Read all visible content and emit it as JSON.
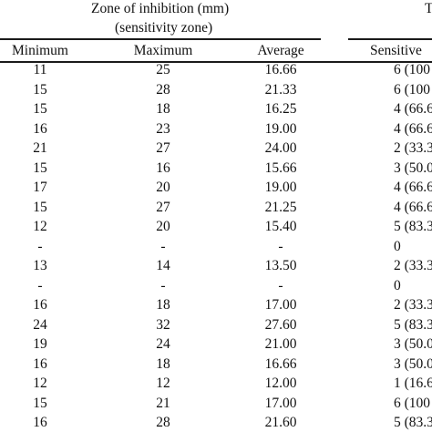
{
  "header": {
    "group_title": "Zone of inhibition (mm)",
    "group_subtitle": "(sensitivity zone)",
    "right_group_fragment": "T"
  },
  "columns": [
    "Minimum",
    "Maximum",
    "Average",
    "Sensitive"
  ],
  "rows": [
    [
      "11",
      "25",
      "16.66",
      "6 (100"
    ],
    [
      "15",
      "28",
      "21.33",
      "6 (100"
    ],
    [
      "15",
      "18",
      "16.25",
      "4 (66.6"
    ],
    [
      "16",
      "23",
      "19.00",
      "4 (66.6"
    ],
    [
      "21",
      "27",
      "24.00",
      "2 (33.3"
    ],
    [
      "15",
      "16",
      "15.66",
      "3 (50.0"
    ],
    [
      "17",
      "20",
      "19.00",
      "4 (66.6"
    ],
    [
      "15",
      "27",
      "21.25",
      "4 (66.6"
    ],
    [
      "12",
      "20",
      "15.40",
      "5 (83.3"
    ],
    [
      "-",
      "-",
      "-",
      "0"
    ],
    [
      "13",
      "14",
      "13.50",
      "2 (33.3"
    ],
    [
      "-",
      "-",
      "-",
      "0"
    ],
    [
      "16",
      "18",
      "17.00",
      "2 (33.3"
    ],
    [
      "24",
      "32",
      "27.60",
      "5 (83.3"
    ],
    [
      "19",
      "24",
      "21.00",
      "3 (50.0"
    ],
    [
      "16",
      "18",
      "16.66",
      "3 (50.0"
    ],
    [
      "12",
      "12",
      "12.00",
      "1 (16.6"
    ],
    [
      "15",
      "21",
      "17.00",
      "6 (100"
    ],
    [
      "16",
      "28",
      "21.60",
      "5 (83.3"
    ]
  ]
}
